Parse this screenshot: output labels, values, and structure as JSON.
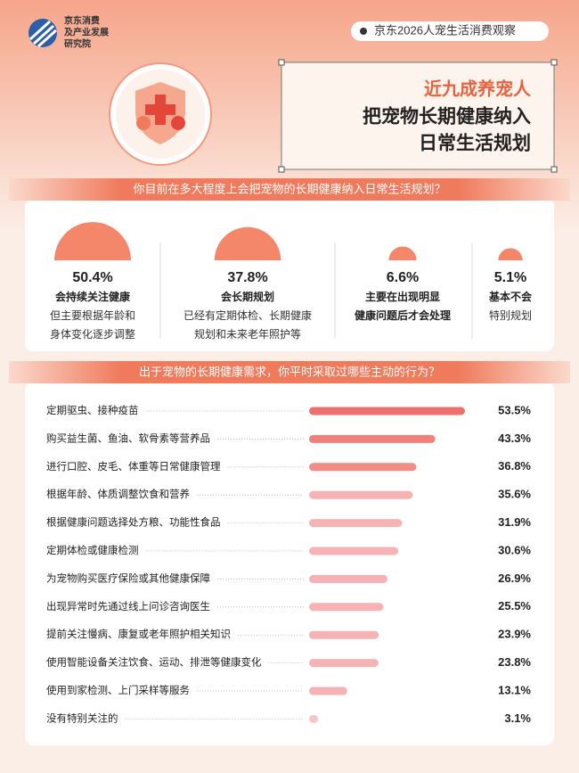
{
  "header": {
    "org": [
      "京东消费",
      "及产业发展",
      "研究院"
    ],
    "tag": "京东2026人宠生活消费观察",
    "title": [
      "近九成养宠人",
      "把宠物长期健康纳入",
      "日常生活规划"
    ]
  },
  "chart_data": [
    {
      "type": "semicircle",
      "title": "你目前在多大程度上会把宠物的长期健康纳入日常生活规划？",
      "categories": [
        [
          "会持续关注健康"
        ],
        [
          "会长期规划"
        ],
        [
          "主要在出现明显",
          "健康问题后才会处理"
        ],
        [
          "基本不会"
        ]
      ],
      "notes": [
        [
          "但主要根据年龄和",
          "身体变化逐步调整"
        ],
        [
          "已经有定期体检、长期健康",
          "规划和未来老年照护等"
        ],
        [],
        [
          "特别规划"
        ]
      ],
      "values": [
        50.4,
        37.8,
        6.6,
        5.1
      ],
      "value_labels": [
        "50.4%",
        "37.8%",
        "6.6%",
        "5.1%"
      ],
      "color": "#f4876a"
    },
    {
      "type": "hbar",
      "title": "出于宠物的长期健康需求，你平时采取过哪些主动的行为？",
      "categories": [
        "定期驱虫、接种疫苗",
        "购买益生菌、鱼油、软骨素等营养品",
        "进行口腔、皮毛、体重等日常健康管理",
        "根据年龄、体质调整饮食和营养",
        "根据健康问题选择处方粮、功能性食品",
        "定期体检或健康检测",
        "为宠物购买医疗保险或其他健康保障",
        "出现异常时先通过线上问诊咨询医生",
        "提前关注慢病、康复或老年照护相关知识",
        "使用智能设备关注饮食、运动、排泄等健康变化",
        "使用到家检测、上门采样等服务",
        "没有特别关注的"
      ],
      "values": [
        53.5,
        43.3,
        36.8,
        35.6,
        31.9,
        30.6,
        26.9,
        25.5,
        23.9,
        23.8,
        13.1,
        3.1
      ],
      "value_labels": [
        "53.5%",
        "43.3%",
        "36.8%",
        "35.6%",
        "31.9%",
        "30.6%",
        "26.9%",
        "25.5%",
        "23.9%",
        "23.8%",
        "13.1%",
        "3.1%"
      ],
      "colors": [
        "#ef6f6c",
        "#f0807a",
        "#f28c86",
        "#f6b3b3",
        "#f6b3b3",
        "#f6b3b3",
        "#f6b3b3",
        "#f6b3b3",
        "#f6b3b3",
        "#f6b3b3",
        "#f6b3b3",
        "#f8c6c6"
      ]
    }
  ]
}
